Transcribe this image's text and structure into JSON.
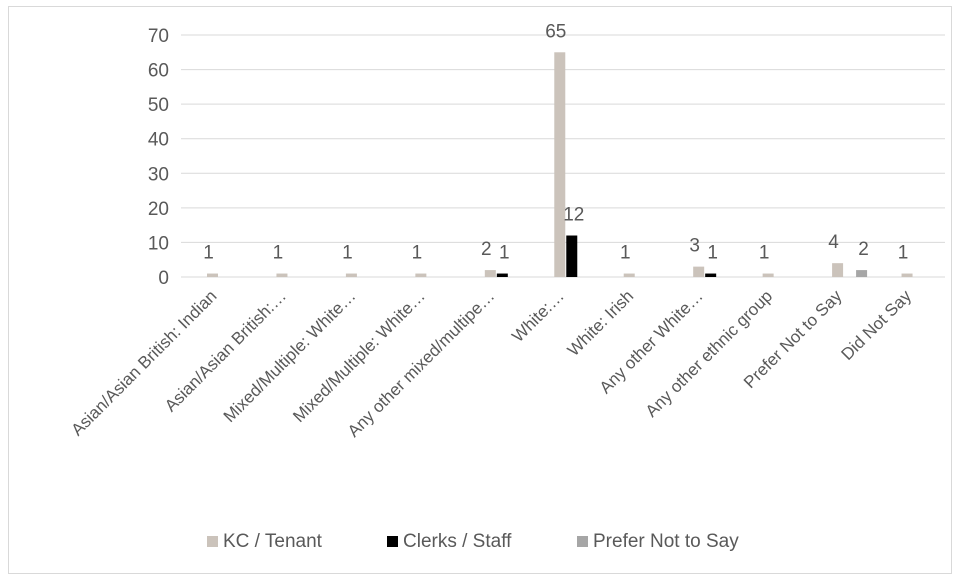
{
  "chart_data": {
    "type": "bar",
    "title": "",
    "xlabel": "",
    "ylabel": "",
    "ylim": [
      0,
      70
    ],
    "yticks": [
      0,
      10,
      20,
      30,
      40,
      50,
      60,
      70
    ],
    "grid": true,
    "legend_position": "bottom",
    "categories": [
      "Asian/Asian British: Indian",
      "Asian/Asian British:…",
      "Mixed/Multiple: White…",
      "Mixed/Multiple: White…",
      "Any other mixed/multipe…",
      "White:…",
      "White: Irish",
      "Any other White…",
      "Any other ethnic group",
      "Prefer Not to Say",
      "Did Not Say"
    ],
    "series": [
      {
        "name": "KC / Tenant",
        "color": "#cbc3bb",
        "values": [
          1,
          1,
          1,
          1,
          2,
          65,
          1,
          3,
          1,
          4,
          1
        ]
      },
      {
        "name": "Clerks / Staff",
        "color": "#000000",
        "values": [
          null,
          null,
          null,
          null,
          1,
          12,
          null,
          1,
          null,
          null,
          null
        ]
      },
      {
        "name": "Prefer Not to Say",
        "color": "#a6a6a6",
        "values": [
          null,
          null,
          null,
          null,
          null,
          null,
          null,
          null,
          null,
          2,
          null
        ]
      }
    ]
  }
}
